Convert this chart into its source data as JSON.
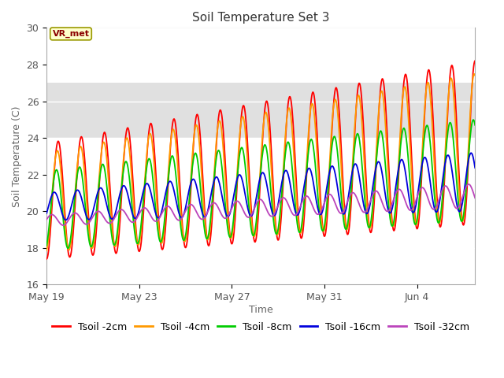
{
  "title": "Soil Temperature Set 3",
  "xlabel": "Time",
  "ylabel": "Soil Temperature (C)",
  "ylim": [
    16,
    30
  ],
  "xlim_days": [
    0,
    18.5
  ],
  "x_ticks_labels": [
    "May 19",
    "May 23",
    "May 27",
    "May 31",
    "Jun 4"
  ],
  "x_ticks_days": [
    0,
    4,
    8,
    12,
    16
  ],
  "annotation_text": "VR_met",
  "bg_band_y1": 24,
  "bg_band_y2": 27,
  "colors": {
    "Tsoil -2cm": "#ff0000",
    "Tsoil -4cm": "#ff9900",
    "Tsoil -8cm": "#00cc00",
    "Tsoil -16cm": "#0000dd",
    "Tsoil -32cm": "#bb44bb"
  },
  "legend_labels": [
    "Tsoil -2cm",
    "Tsoil -4cm",
    "Tsoil -8cm",
    "Tsoil -16cm",
    "Tsoil -32cm"
  ],
  "fig_bg_color": "#ffffff",
  "plot_bg_color": "#ffffff",
  "band_color": "#e0e0e0",
  "grid_color": "#dddddd",
  "title_fontsize": 11,
  "axis_label_fontsize": 9,
  "tick_fontsize": 9,
  "legend_fontsize": 9,
  "yticks": [
    16,
    18,
    20,
    22,
    24,
    26,
    28,
    30
  ],
  "t2cm_params": [
    17.4,
    19.3,
    23.7,
    28.2,
    0.0
  ],
  "t4cm_params": [
    17.8,
    19.5,
    23.2,
    27.5,
    0.035
  ],
  "t8cm_params": [
    17.9,
    19.5,
    22.2,
    25.0,
    0.075
  ],
  "t16cm_params": [
    19.5,
    20.0,
    21.0,
    23.2,
    0.17
  ],
  "t32cm_params": [
    19.2,
    20.2,
    19.8,
    21.5,
    0.28
  ]
}
